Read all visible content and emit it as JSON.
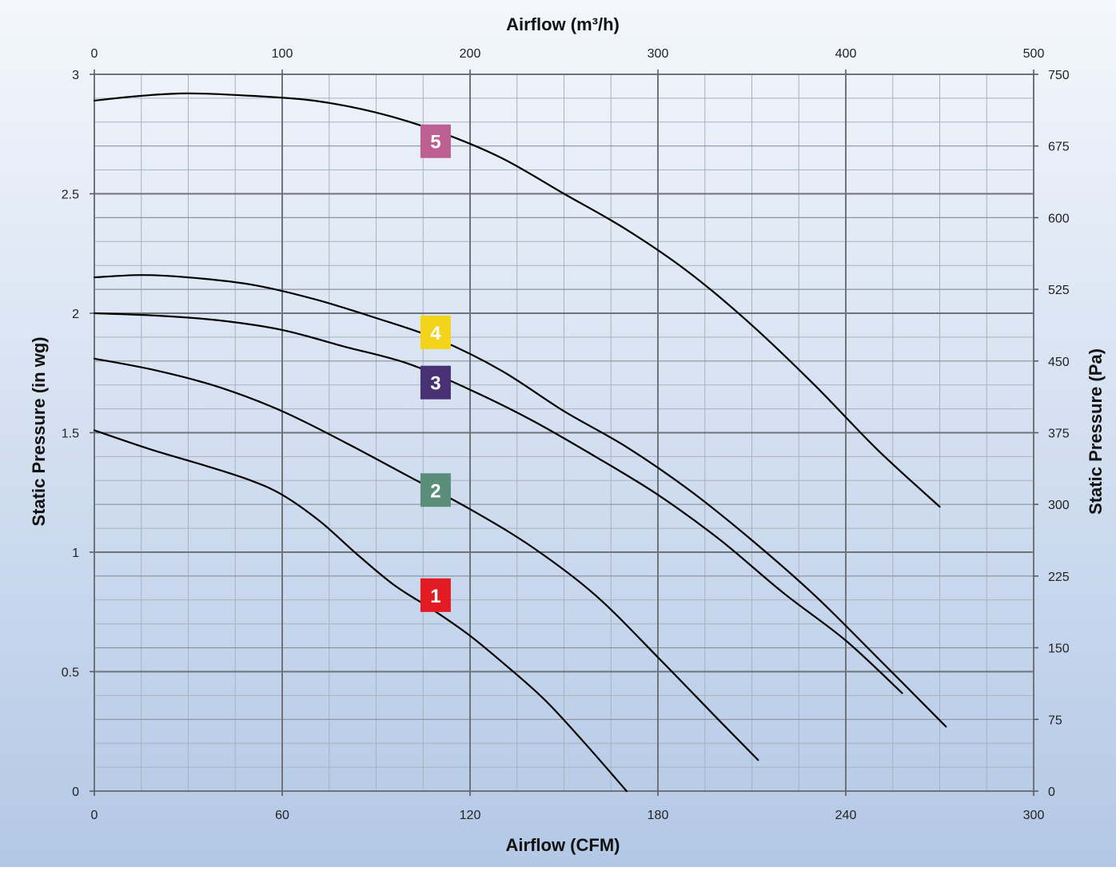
{
  "chart_data": {
    "type": "line",
    "xlabel": "Airflow (CFM)",
    "x2label": "Airflow (m³/h)",
    "ylabel": "Static Pressure (in wg)",
    "y2label": "Static Pressure (Pa)",
    "xlim": [
      0,
      300
    ],
    "x2lim": [
      0,
      500
    ],
    "ylim": [
      0,
      3
    ],
    "y2lim": [
      0,
      750
    ],
    "x_ticks": [
      "0",
      "60",
      "120",
      "180",
      "240",
      "300"
    ],
    "x2_ticks": [
      "0",
      "100",
      "200",
      "300",
      "400",
      "500"
    ],
    "y_ticks": [
      "0",
      "0.5",
      "1",
      "1.5",
      "2",
      "2.5",
      "3"
    ],
    "y2_ticks": [
      "0",
      "75",
      "150",
      "225",
      "300",
      "375",
      "450",
      "525",
      "600",
      "675",
      "750"
    ],
    "grid": true,
    "background": {
      "top": "#f4f7fc",
      "bottom": "#b3c8e6"
    },
    "series": [
      {
        "name": "1",
        "color": "#e31b23",
        "label_at": [
          109,
          0.82
        ],
        "points": [
          [
            0,
            1.51
          ],
          [
            18,
            1.43
          ],
          [
            36,
            1.36
          ],
          [
            50,
            1.3
          ],
          [
            60,
            1.24
          ],
          [
            72,
            1.13
          ],
          [
            84,
            0.99
          ],
          [
            96,
            0.86
          ],
          [
            108,
            0.76
          ],
          [
            120,
            0.65
          ],
          [
            132,
            0.52
          ],
          [
            144,
            0.38
          ],
          [
            156,
            0.21
          ],
          [
            170,
            0
          ]
        ]
      },
      {
        "name": "2",
        "color": "#5b8d7b",
        "label_at": [
          109,
          1.26
        ],
        "points": [
          [
            0,
            1.81
          ],
          [
            20,
            1.76
          ],
          [
            40,
            1.69
          ],
          [
            60,
            1.59
          ],
          [
            80,
            1.46
          ],
          [
            100,
            1.32
          ],
          [
            120,
            1.18
          ],
          [
            140,
            1.02
          ],
          [
            160,
            0.82
          ],
          [
            180,
            0.56
          ],
          [
            200,
            0.29
          ],
          [
            212,
            0.13
          ]
        ]
      },
      {
        "name": "3",
        "color": "#473174",
        "label_at": [
          109,
          1.71
        ],
        "points": [
          [
            0,
            2.0
          ],
          [
            20,
            1.99
          ],
          [
            40,
            1.97
          ],
          [
            60,
            1.93
          ],
          [
            80,
            1.86
          ],
          [
            100,
            1.79
          ],
          [
            120,
            1.68
          ],
          [
            140,
            1.55
          ],
          [
            160,
            1.4
          ],
          [
            180,
            1.24
          ],
          [
            200,
            1.05
          ],
          [
            220,
            0.83
          ],
          [
            240,
            0.63
          ],
          [
            258,
            0.41
          ]
        ]
      },
      {
        "name": "4",
        "color": "#f3d41a",
        "label_at": [
          109,
          1.92
        ],
        "points": [
          [
            0,
            2.15
          ],
          [
            15,
            2.16
          ],
          [
            30,
            2.15
          ],
          [
            50,
            2.12
          ],
          [
            70,
            2.06
          ],
          [
            90,
            1.98
          ],
          [
            110,
            1.89
          ],
          [
            130,
            1.76
          ],
          [
            150,
            1.59
          ],
          [
            170,
            1.44
          ],
          [
            190,
            1.26
          ],
          [
            210,
            1.05
          ],
          [
            230,
            0.82
          ],
          [
            250,
            0.56
          ],
          [
            272,
            0.27
          ]
        ]
      },
      {
        "name": "5",
        "color": "#bd5f90",
        "label_at": [
          109,
          2.72
        ],
        "points": [
          [
            0,
            2.89
          ],
          [
            15,
            2.91
          ],
          [
            30,
            2.92
          ],
          [
            50,
            2.91
          ],
          [
            70,
            2.89
          ],
          [
            90,
            2.84
          ],
          [
            110,
            2.76
          ],
          [
            130,
            2.65
          ],
          [
            150,
            2.5
          ],
          [
            170,
            2.35
          ],
          [
            190,
            2.17
          ],
          [
            210,
            1.95
          ],
          [
            230,
            1.7
          ],
          [
            250,
            1.43
          ],
          [
            270,
            1.19
          ]
        ]
      }
    ]
  }
}
